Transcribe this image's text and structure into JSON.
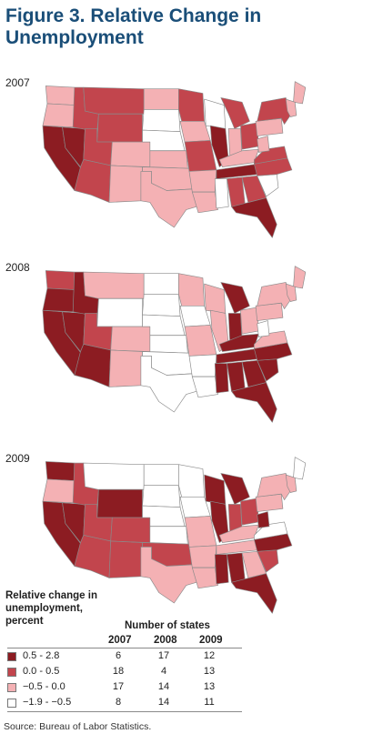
{
  "title": "Figure 3. Relative Change in Unemployment",
  "colors": {
    "c1": "#8c1c22",
    "c2": "#c2454d",
    "c3": "#f4b1b4",
    "c4": "#ffffff",
    "stroke": "#8a8a8a"
  },
  "maps": [
    {
      "year": "2007",
      "states": {
        "WA": "c3",
        "OR": "c3",
        "CA": "c1",
        "NV": "c1",
        "ID": "c2",
        "MT": "c2",
        "WY": "c2",
        "UT": "c2",
        "AZ": "c2",
        "CO": "c3",
        "NM": "c3",
        "ND": "c3",
        "SD": "c4",
        "NE": "c4",
        "KS": "c3",
        "OK": "c3",
        "TX": "c3",
        "MN": "c2",
        "IA": "c3",
        "MO": "c2",
        "AR": "c3",
        "LA": "c3",
        "WI": "c4",
        "IL": "c1",
        "MI": "c2",
        "IN": "c3",
        "OH": "c2",
        "KY": "c3",
        "TN": "c1",
        "MS": "c4",
        "AL": "c2",
        "GA": "c2",
        "FL": "c1",
        "SC": "c4",
        "NC": "c2",
        "VA": "c2",
        "WV": "c3",
        "PA": "c3",
        "NY": "c2",
        "ME": "c3",
        "NE6": "c3"
      }
    },
    {
      "year": "2008",
      "states": {
        "WA": "c2",
        "OR": "c1",
        "CA": "c1",
        "NV": "c1",
        "ID": "c1",
        "MT": "c3",
        "WY": "c4",
        "UT": "c2",
        "AZ": "c1",
        "CO": "c3",
        "NM": "c3",
        "ND": "c4",
        "SD": "c4",
        "NE": "c4",
        "KS": "c4",
        "OK": "c4",
        "TX": "c4",
        "MN": "c3",
        "IA": "c4",
        "MO": "c3",
        "AR": "c4",
        "LA": "c4",
        "WI": "c3",
        "IL": "c3",
        "MI": "c1",
        "IN": "c1",
        "OH": "c3",
        "KY": "c1",
        "TN": "c1",
        "MS": "c1",
        "AL": "c1",
        "GA": "c1",
        "FL": "c1",
        "SC": "c1",
        "NC": "c1",
        "VA": "c3",
        "WV": "c4",
        "PA": "c3",
        "NY": "c3",
        "ME": "c3",
        "NE6": "c3"
      }
    },
    {
      "year": "2009",
      "states": {
        "WA": "c1",
        "OR": "c3",
        "CA": "c1",
        "NV": "c1",
        "ID": "c2",
        "MT": "c4",
        "WY": "c1",
        "UT": "c2",
        "AZ": "c2",
        "CO": "c2",
        "NM": "c2",
        "ND": "c4",
        "SD": "c4",
        "NE": "c4",
        "KS": "c4",
        "OK": "c2",
        "TX": "c3",
        "MN": "c4",
        "IA": "c4",
        "MO": "c3",
        "AR": "c3",
        "LA": "c3",
        "WI": "c1",
        "IL": "c1",
        "MI": "c1",
        "IN": "c2",
        "OH": "c2",
        "KY": "c3",
        "TN": "c3",
        "MS": "c1",
        "AL": "c1",
        "GA": "c3",
        "FL": "c1",
        "SC": "c2",
        "NC": "c1",
        "VA": "c4",
        "WV": "c1",
        "PA": "c3",
        "NY": "c3",
        "ME": "c4",
        "NE6": "c3"
      }
    }
  ],
  "legend": {
    "title": "Relative change in unemployment, percent",
    "header": "Number of states",
    "columns": [
      "2007",
      "2008",
      "2009"
    ],
    "rows": [
      {
        "label": "0.5 - 2.8",
        "color": "#8c1c22",
        "counts": [
          "6",
          "17",
          "12"
        ]
      },
      {
        "label": "0.0 - 0.5",
        "color": "#c2454d",
        "counts": [
          "18",
          "4",
          "13"
        ]
      },
      {
        "label": "−0.5 - 0.0",
        "color": "#f4b1b4",
        "counts": [
          "17",
          "14",
          "13"
        ]
      },
      {
        "label": "−1.9 - −0.5",
        "color": "#ffffff",
        "counts": [
          "8",
          "14",
          "11"
        ]
      }
    ]
  },
  "source": "Source: Bureau of Labor Statistics."
}
